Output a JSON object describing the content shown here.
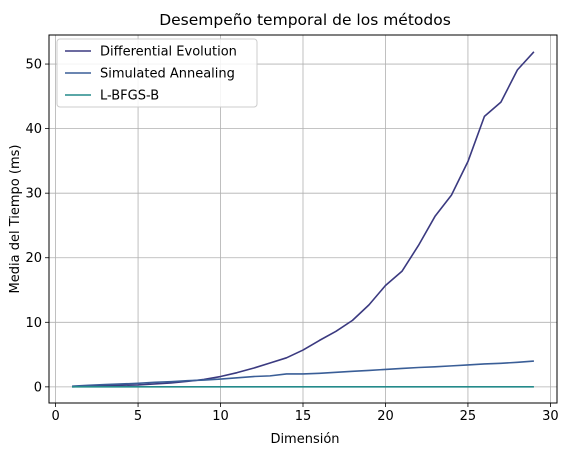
{
  "chart_data": {
    "type": "line",
    "title": "Desempeño temporal de los métodos",
    "xlabel": "Dimensión",
    "ylabel": "Media del Tiempo (ms)",
    "xlim": [
      -0.4,
      30.4
    ],
    "ylim": [
      -2.5,
      54.5
    ],
    "xticks": [
      0,
      5,
      10,
      15,
      20,
      25,
      30
    ],
    "yticks": [
      0,
      10,
      20,
      30,
      40,
      50
    ],
    "grid": true,
    "legend_position": "top-left",
    "x": [
      1,
      2,
      3,
      4,
      5,
      6,
      7,
      8,
      9,
      10,
      11,
      12,
      13,
      14,
      15,
      16,
      17,
      18,
      19,
      20,
      21,
      22,
      23,
      24,
      25,
      26,
      27,
      28,
      29
    ],
    "series": [
      {
        "name": "Differential Evolution",
        "color": "#3b3a80",
        "values": [
          0.0,
          0.1,
          0.2,
          0.25,
          0.3,
          0.45,
          0.6,
          0.85,
          1.15,
          1.6,
          2.2,
          2.9,
          3.7,
          4.5,
          5.7,
          7.2,
          8.6,
          10.3,
          12.7,
          15.7,
          17.9,
          21.9,
          26.4,
          29.7,
          34.9,
          41.9,
          44.1,
          49.1,
          51.9
        ]
      },
      {
        "name": "Simulated Annealing",
        "color": "#3a5e97",
        "values": [
          0.1,
          0.25,
          0.35,
          0.45,
          0.55,
          0.7,
          0.8,
          0.95,
          1.05,
          1.2,
          1.4,
          1.6,
          1.7,
          2.0,
          2.0,
          2.1,
          2.25,
          2.4,
          2.55,
          2.7,
          2.85,
          3.0,
          3.1,
          3.25,
          3.4,
          3.55,
          3.65,
          3.8,
          4.0
        ]
      },
      {
        "name": "L-BFGS-B",
        "color": "#248a8a",
        "values": [
          0.0,
          0.0,
          0.0,
          0.0,
          0.0,
          0.0,
          0.0,
          0.0,
          0.0,
          0.0,
          0.0,
          0.0,
          0.0,
          0.0,
          0.0,
          0.0,
          0.0,
          0.0,
          0.0,
          0.0,
          0.0,
          0.0,
          0.0,
          0.0,
          0.0,
          0.0,
          0.0,
          0.0,
          0.0
        ]
      }
    ]
  }
}
